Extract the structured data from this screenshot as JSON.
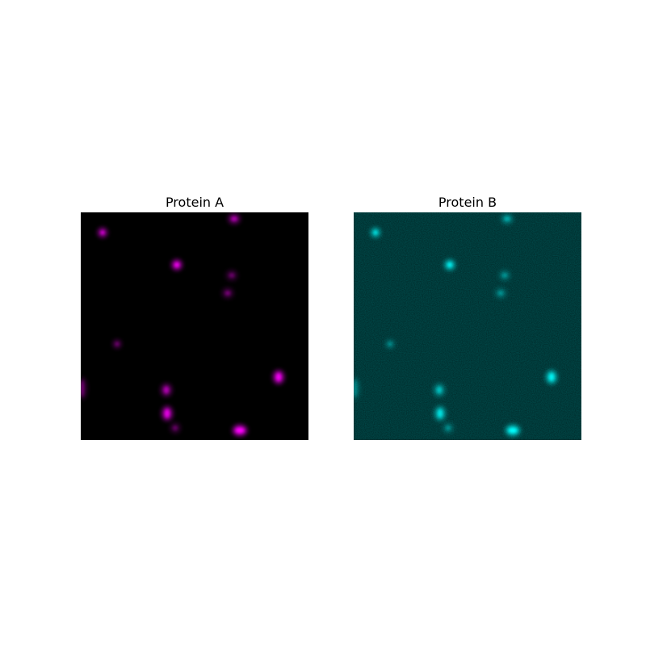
{
  "panels": [
    {
      "title": "Protein A",
      "channel_color": "#ff00ff",
      "background_color": "#000000"
    },
    {
      "title": "Protein B",
      "channel_color": "#00ffff",
      "background_color": "#002626"
    }
  ]
}
